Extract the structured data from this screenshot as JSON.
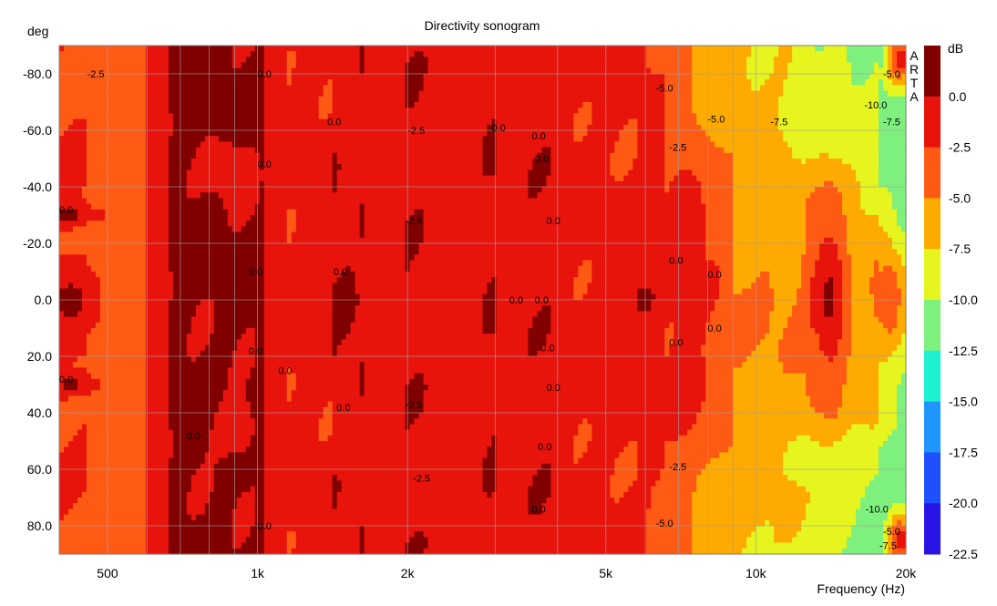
{
  "chart_data": {
    "type": "heatmap",
    "title": "Directivity sonogram",
    "ylabel": "deg",
    "xlabel": "Frequency (Hz)",
    "x_scale": "log",
    "xlim": [
      400,
      20000
    ],
    "ylim": [
      -90,
      90
    ],
    "y_ticks": [
      {
        "value": -80,
        "label": "-80.0"
      },
      {
        "value": -60,
        "label": "-60.0"
      },
      {
        "value": -40,
        "label": "-40.0"
      },
      {
        "value": -20,
        "label": "-20.0"
      },
      {
        "value": 0,
        "label": "0.0"
      },
      {
        "value": 20,
        "label": "20.0"
      },
      {
        "value": 40,
        "label": "40.0"
      },
      {
        "value": 60,
        "label": "60.0"
      },
      {
        "value": 80,
        "label": "80.0"
      }
    ],
    "x_ticks": [
      {
        "value": 500,
        "label": "500"
      },
      {
        "value": 1000,
        "label": "1k"
      },
      {
        "value": 2000,
        "label": "2k"
      },
      {
        "value": 5000,
        "label": "5k"
      },
      {
        "value": 10000,
        "label": "10k"
      },
      {
        "value": 20000,
        "label": "20k"
      }
    ],
    "grid": true,
    "colorbar": {
      "unit": "dB",
      "levels": [
        {
          "label": "0.0",
          "color": "#800000"
        },
        {
          "label": "-2.5",
          "color": "#e8140c"
        },
        {
          "label": "-5.0",
          "color": "#ff5a14"
        },
        {
          "label": "-7.5",
          "color": "#ffaa00"
        },
        {
          "label": "-10.0",
          "color": "#e6f51e"
        },
        {
          "label": "-12.5",
          "color": "#7ef07e"
        },
        {
          "label": "-15.0",
          "color": "#1ef0d2"
        },
        {
          "label": "-17.5",
          "color": "#1e96ff"
        },
        {
          "label": "-20.0",
          "color": "#1e50ff"
        },
        {
          "label": "-22.5",
          "color": "#2814e6"
        }
      ]
    },
    "watermark": "ARTA",
    "bands": [
      {
        "from": 400,
        "to": 455,
        "value": -2.5
      },
      {
        "from": 455,
        "to": 600,
        "value": -3.5
      },
      {
        "from": 600,
        "to": 660,
        "value": -1.5
      },
      {
        "from": 660,
        "to": 1020,
        "value": 0.5
      },
      {
        "from": 1020,
        "to": 1150,
        "value": -1.0
      },
      {
        "from": 1150,
        "to": 1420,
        "value": -1.8
      },
      {
        "from": 1420,
        "to": 1650,
        "value": -0.6
      },
      {
        "from": 1650,
        "to": 1980,
        "value": -1.6
      },
      {
        "from": 1980,
        "to": 2350,
        "value": -0.5
      },
      {
        "from": 2350,
        "to": 2700,
        "value": -1.2
      },
      {
        "from": 2700,
        "to": 3000,
        "value": -0.4
      },
      {
        "from": 3000,
        "to": 3500,
        "value": -1.0
      },
      {
        "from": 3500,
        "to": 4200,
        "value": -0.6
      },
      {
        "from": 4200,
        "to": 5000,
        "value": -1.8
      },
      {
        "from": 5000,
        "to": 6500,
        "value": -2.0
      },
      {
        "from": 6500,
        "to": 9000,
        "value": -3.2
      },
      {
        "from": 9000,
        "to": 13000,
        "value": -5.0
      },
      {
        "from": 13000,
        "to": 17500,
        "value": -6.5
      },
      {
        "from": 17500,
        "to": 20000,
        "value": -7.8
      }
    ],
    "spots": [
      {
        "f": 420,
        "deg": -30,
        "wf": 0.05,
        "wd": 4,
        "value": 0.5
      },
      {
        "f": 420,
        "deg": 30,
        "wf": 0.05,
        "wd": 4,
        "value": 0.5
      },
      {
        "f": 420,
        "deg": 0,
        "wf": 0.06,
        "wd": 12,
        "value": 0.5
      },
      {
        "f": 480,
        "deg": -78,
        "wf": 0.05,
        "wd": 10,
        "value": -4.5
      },
      {
        "f": 480,
        "deg": 80,
        "wf": 0.05,
        "wd": 10,
        "value": -4.5
      },
      {
        "f": 900,
        "deg": -45,
        "wf": 0.04,
        "wd": 10,
        "value": -1.8
      },
      {
        "f": 900,
        "deg": 45,
        "wf": 0.04,
        "wd": 10,
        "value": -1.8
      },
      {
        "f": 1500,
        "deg": 0,
        "wf": 0.04,
        "wd": 15,
        "value": 0.5
      },
      {
        "f": 2300,
        "deg": -10,
        "wf": 0.03,
        "wd": 10,
        "value": -1.8
      },
      {
        "f": 2300,
        "deg": 10,
        "wf": 0.03,
        "wd": 10,
        "value": -1.8
      },
      {
        "f": 6000,
        "deg": 0,
        "wf": 0.05,
        "wd": 10,
        "value": 0.5
      },
      {
        "f": 7200,
        "deg": -30,
        "wf": 0.06,
        "wd": 25,
        "value": -1.5
      },
      {
        "f": 7200,
        "deg": 30,
        "wf": 0.06,
        "wd": 25,
        "value": -1.5
      },
      {
        "f": 8500,
        "deg": -70,
        "wf": 0.06,
        "wd": 18,
        "value": -6.8
      },
      {
        "f": 8500,
        "deg": 70,
        "wf": 0.06,
        "wd": 18,
        "value": -6.8
      },
      {
        "f": 13000,
        "deg": -40,
        "wf": 0.06,
        "wd": 10,
        "value": -3.0
      },
      {
        "f": 13000,
        "deg": 40,
        "wf": 0.06,
        "wd": 10,
        "value": -3.0
      },
      {
        "f": 14000,
        "deg": 0,
        "wf": 0.04,
        "wd": 30,
        "value": 0.5
      },
      {
        "f": 12500,
        "deg": -55,
        "wf": 0.06,
        "wd": 20,
        "value": -7.8
      },
      {
        "f": 12500,
        "deg": 55,
        "wf": 0.06,
        "wd": 20,
        "value": -7.8
      },
      {
        "f": 19500,
        "deg": -25,
        "wf": 0.03,
        "wd": 20,
        "value": -11.5
      },
      {
        "f": 19500,
        "deg": 20,
        "wf": 0.03,
        "wd": 20,
        "value": -11.5
      },
      {
        "f": 19500,
        "deg": -85,
        "wf": 0.03,
        "wd": 10,
        "value": -1.5
      },
      {
        "f": 19500,
        "deg": 85,
        "wf": 0.03,
        "wd": 10,
        "value": -1.5
      },
      {
        "f": 18500,
        "deg": 0,
        "wf": 0.04,
        "wd": 22,
        "value": -3.5
      }
    ],
    "contour_labels": [
      {
        "f": 455,
        "deg": -80,
        "text": "-2.5"
      },
      {
        "f": 400,
        "deg": -32,
        "text": "0.0"
      },
      {
        "f": 400,
        "deg": 28,
        "text": "0.0"
      },
      {
        "f": 1000,
        "deg": -80,
        "text": "0.0"
      },
      {
        "f": 1380,
        "deg": -63,
        "text": "0.0"
      },
      {
        "f": 1000,
        "deg": -48,
        "text": "0.0"
      },
      {
        "f": 960,
        "deg": -10,
        "text": "0.0"
      },
      {
        "f": 1420,
        "deg": -10,
        "text": "0.0"
      },
      {
        "f": 960,
        "deg": 18,
        "text": "0.0"
      },
      {
        "f": 1100,
        "deg": 25,
        "text": "0.0"
      },
      {
        "f": 1440,
        "deg": 38,
        "text": "0.0"
      },
      {
        "f": 720,
        "deg": 48,
        "text": "0.0"
      },
      {
        "f": 1000,
        "deg": 80,
        "text": "0.0"
      },
      {
        "f": 2000,
        "deg": -60,
        "text": "-2.5"
      },
      {
        "f": 1980,
        "deg": -28,
        "text": "-2.5"
      },
      {
        "f": 1980,
        "deg": 37,
        "text": "-2.5"
      },
      {
        "f": 2050,
        "deg": 63,
        "text": "-2.5"
      },
      {
        "f": 2950,
        "deg": -61,
        "text": "0.0"
      },
      {
        "f": 3550,
        "deg": -58,
        "text": "0.0"
      },
      {
        "f": 3600,
        "deg": -50,
        "text": "0.0"
      },
      {
        "f": 3800,
        "deg": -28,
        "text": "0.0"
      },
      {
        "f": 3200,
        "deg": 0,
        "text": "0.0"
      },
      {
        "f": 3600,
        "deg": 0,
        "text": "0.0"
      },
      {
        "f": 3700,
        "deg": 17,
        "text": "0.0"
      },
      {
        "f": 3800,
        "deg": 31,
        "text": "0.0"
      },
      {
        "f": 3650,
        "deg": 52,
        "text": "0.0"
      },
      {
        "f": 3550,
        "deg": 74,
        "text": "0.0"
      },
      {
        "f": 6300,
        "deg": -75,
        "text": "-5.0"
      },
      {
        "f": 6700,
        "deg": -54,
        "text": "-2.5"
      },
      {
        "f": 8000,
        "deg": -64,
        "text": "-5.0"
      },
      {
        "f": 10700,
        "deg": -63,
        "text": "-7.5"
      },
      {
        "f": 6700,
        "deg": -14,
        "text": "0.0"
      },
      {
        "f": 8000,
        "deg": -9,
        "text": "0.0"
      },
      {
        "f": 8000,
        "deg": 10,
        "text": "0.0"
      },
      {
        "f": 6700,
        "deg": 15,
        "text": "0.0"
      },
      {
        "f": 6700,
        "deg": 59,
        "text": "-2.5"
      },
      {
        "f": 6300,
        "deg": 79,
        "text": "-5.0"
      },
      {
        "f": 16500,
        "deg": -69,
        "text": "-10.0"
      },
      {
        "f": 16600,
        "deg": 74,
        "text": "-10.0"
      },
      {
        "f": 18000,
        "deg": -80,
        "text": "-5.0"
      },
      {
        "f": 18000,
        "deg": -63,
        "text": "-7.5"
      },
      {
        "f": 18000,
        "deg": 82,
        "text": "-5.0"
      },
      {
        "f": 17700,
        "deg": 87,
        "text": "-7.5"
      }
    ]
  }
}
